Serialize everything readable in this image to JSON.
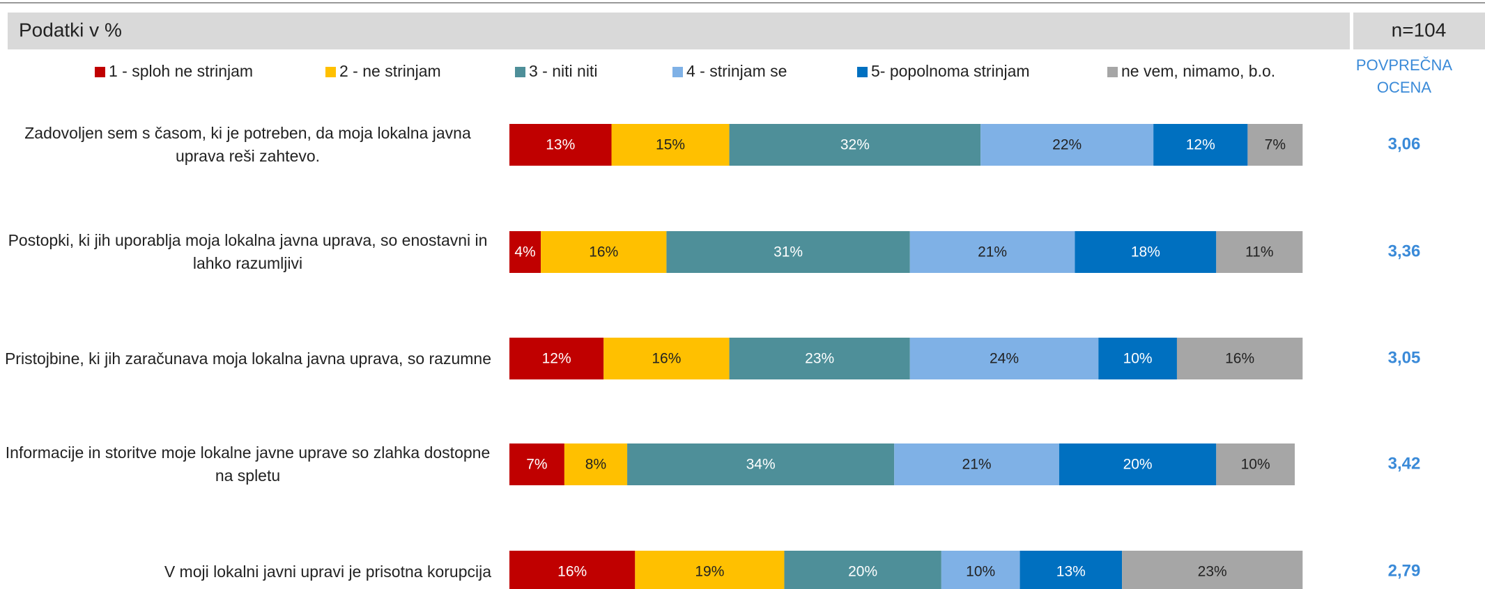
{
  "chart_data": {
    "type": "stacked-bar",
    "title": "Podatki v %",
    "sample_size": "n=104",
    "mean_header": "POVPREČNA OCENA",
    "categories": [
      "Zadovoljen sem s časom, ki je potreben, da moja lokalna javna uprava reši zahtevo.",
      "Postopki, ki jih uporablja moja lokalna javna uprava, so enostavni in lahko razumljivi",
      "Pristojbine, ki jih zaračunava moja lokalna javna uprava, so razumne",
      "Informacije in storitve moje lokalne javne uprave so zlahka dostopne na spletu",
      "V moji lokalni javni upravi je prisotna korupcija"
    ],
    "series": [
      {
        "name": "1 - sploh ne strinjam",
        "color": "#c00000",
        "values": [
          13,
          4,
          12,
          7,
          16
        ],
        "value_labels": [
          "13%",
          "4%",
          "12%",
          "7%",
          "16%"
        ]
      },
      {
        "name": "2 - ne strinjam",
        "color": "#ffc000",
        "values": [
          15,
          16,
          16,
          8,
          19
        ],
        "value_labels": [
          "15%",
          "16%",
          "16%",
          "8%",
          "19%"
        ]
      },
      {
        "name": "3 - niti niti",
        "color": "#4e8f99",
        "values": [
          32,
          31,
          23,
          34,
          20
        ],
        "value_labels": [
          "32%",
          "31%",
          "23%",
          "34%",
          "20%"
        ]
      },
      {
        "name": "4 - strinjam se",
        "color": "#7fb1e6",
        "values": [
          22,
          21,
          24,
          21,
          10
        ],
        "value_labels": [
          "22%",
          "21%",
          "24%",
          "21%",
          "10%"
        ]
      },
      {
        "name": "5- popolnoma strinjam",
        "color": "#0070c0",
        "values": [
          12,
          18,
          10,
          20,
          13
        ],
        "value_labels": [
          "12%",
          "18%",
          "10%",
          "20%",
          "13%"
        ]
      },
      {
        "name": "ne vem, nimamo, b.o.",
        "color": "#a6a6a6",
        "values": [
          7,
          11,
          16,
          10,
          23
        ],
        "value_labels": [
          "7%",
          "11%",
          "16%",
          "10%",
          "23%"
        ]
      }
    ],
    "means": [
      {
        "value": 3.06,
        "label": "3,06"
      },
      {
        "value": 3.36,
        "label": "3,36"
      },
      {
        "value": 3.05,
        "label": "3,05"
      },
      {
        "value": 3.42,
        "label": "3,42"
      },
      {
        "value": 2.79,
        "label": "2,79"
      }
    ],
    "xlim": [
      0,
      100
    ]
  }
}
